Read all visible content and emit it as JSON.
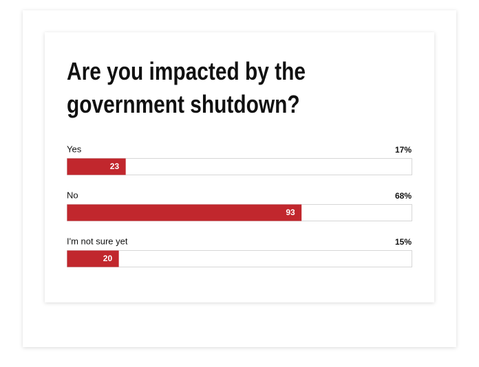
{
  "chart_data": {
    "type": "bar",
    "orientation": "horizontal",
    "title": [
      "Are you impacted by the",
      "government shutdown?"
    ],
    "categories": [
      "Yes",
      "No",
      "I'm not sure yet"
    ],
    "values": [
      17,
      68,
      15
    ],
    "value_labels": [
      "17%",
      "68%",
      "15%"
    ],
    "counts": [
      23,
      93,
      20
    ],
    "color": "#c1272d",
    "xlim": [
      0,
      100
    ]
  }
}
